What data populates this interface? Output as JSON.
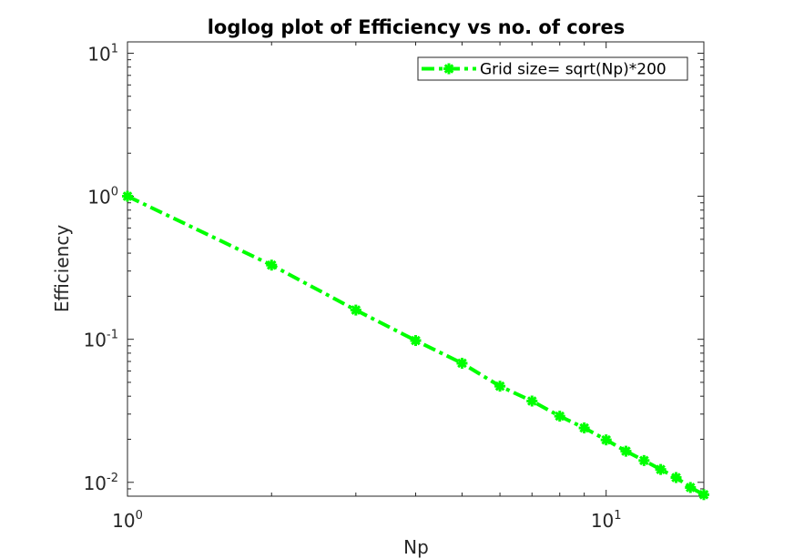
{
  "chart_data": {
    "type": "line",
    "title": "loglog plot of Efficiency vs no. of cores",
    "xlabel": "Np",
    "ylabel": "Efficiency",
    "xscale": "log",
    "yscale": "log",
    "xlim": [
      1,
      16
    ],
    "ylim": [
      0.008,
      12
    ],
    "grid": false,
    "legend_position": "top-right",
    "x_ticks": [
      {
        "value": 1,
        "base": "10",
        "exp": "0"
      },
      {
        "value": 10,
        "base": "10",
        "exp": "1"
      }
    ],
    "y_ticks": [
      {
        "value": 0.01,
        "base": "10",
        "exp": "-2"
      },
      {
        "value": 0.1,
        "base": "10",
        "exp": "-1"
      },
      {
        "value": 1,
        "base": "10",
        "exp": "0"
      },
      {
        "value": 10,
        "base": "10",
        "exp": "1"
      }
    ],
    "series": [
      {
        "name": "Grid size= sqrt(Np)*200",
        "color": "#00ff00",
        "line_style": "dash-dot",
        "marker": "asterisk",
        "x": [
          1,
          2,
          3,
          4,
          5,
          6,
          7,
          8,
          9,
          10,
          11,
          12,
          13,
          14,
          15,
          16
        ],
        "y": [
          1.0,
          0.33,
          0.16,
          0.098,
          0.068,
          0.047,
          0.037,
          0.029,
          0.024,
          0.0198,
          0.0165,
          0.0142,
          0.0123,
          0.0108,
          0.0092,
          0.0082
        ]
      }
    ]
  }
}
